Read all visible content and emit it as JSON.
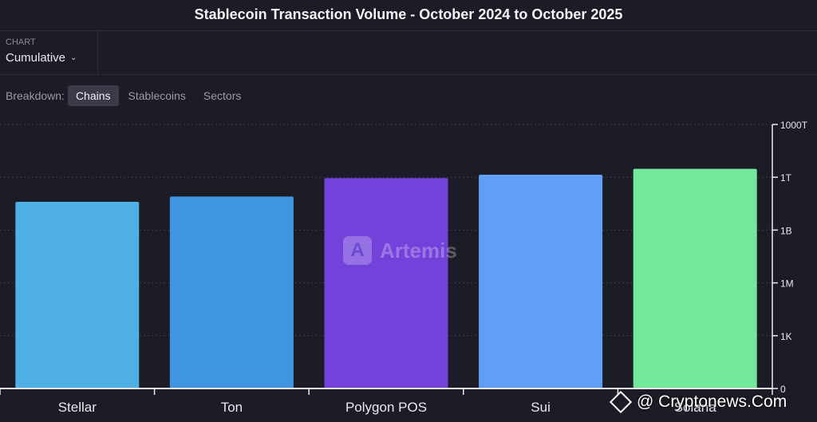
{
  "title": "Stablecoin Transaction Volume - October 2024 to October 2025",
  "chart_selector": {
    "label": "CHART",
    "value": "Cumulative",
    "icon": "chevron-down-icon"
  },
  "breakdown": {
    "label": "Breakdown:",
    "tabs": [
      {
        "label": "Chains",
        "active": true
      },
      {
        "label": "Stablecoins",
        "active": false
      },
      {
        "label": "Sectors",
        "active": false
      }
    ]
  },
  "watermark": {
    "text": "Artemis",
    "icon_letter": "A"
  },
  "source": {
    "text": "@ Cryptonews.Com",
    "icon": "diamond-logo-icon"
  },
  "chart_data": {
    "type": "bar",
    "title": "Stablecoin Transaction Volume - October 2024 to October 2025",
    "xlabel": "",
    "ylabel": "",
    "y_scale": "log",
    "ylim": [
      0,
      1000000000000000
    ],
    "y_ticks": [
      {
        "label": "0",
        "value": 0
      },
      {
        "label": "1K",
        "value": 1000
      },
      {
        "label": "1M",
        "value": 1000000
      },
      {
        "label": "1B",
        "value": 1000000000
      },
      {
        "label": "1T",
        "value": 1000000000000
      },
      {
        "label": "1000T",
        "value": 1000000000000000
      }
    ],
    "categories": [
      "Stellar",
      "Ton",
      "Polygon POS",
      "Sui",
      "Solana"
    ],
    "values": [
      40000000000,
      80000000000,
      900000000000,
      1400000000000,
      3000000000000
    ],
    "colors": [
      "#4eb0e4",
      "#3f95e2",
      "#7342db",
      "#5fa0f6",
      "#74e89a"
    ],
    "grid": true,
    "legend": "none"
  }
}
